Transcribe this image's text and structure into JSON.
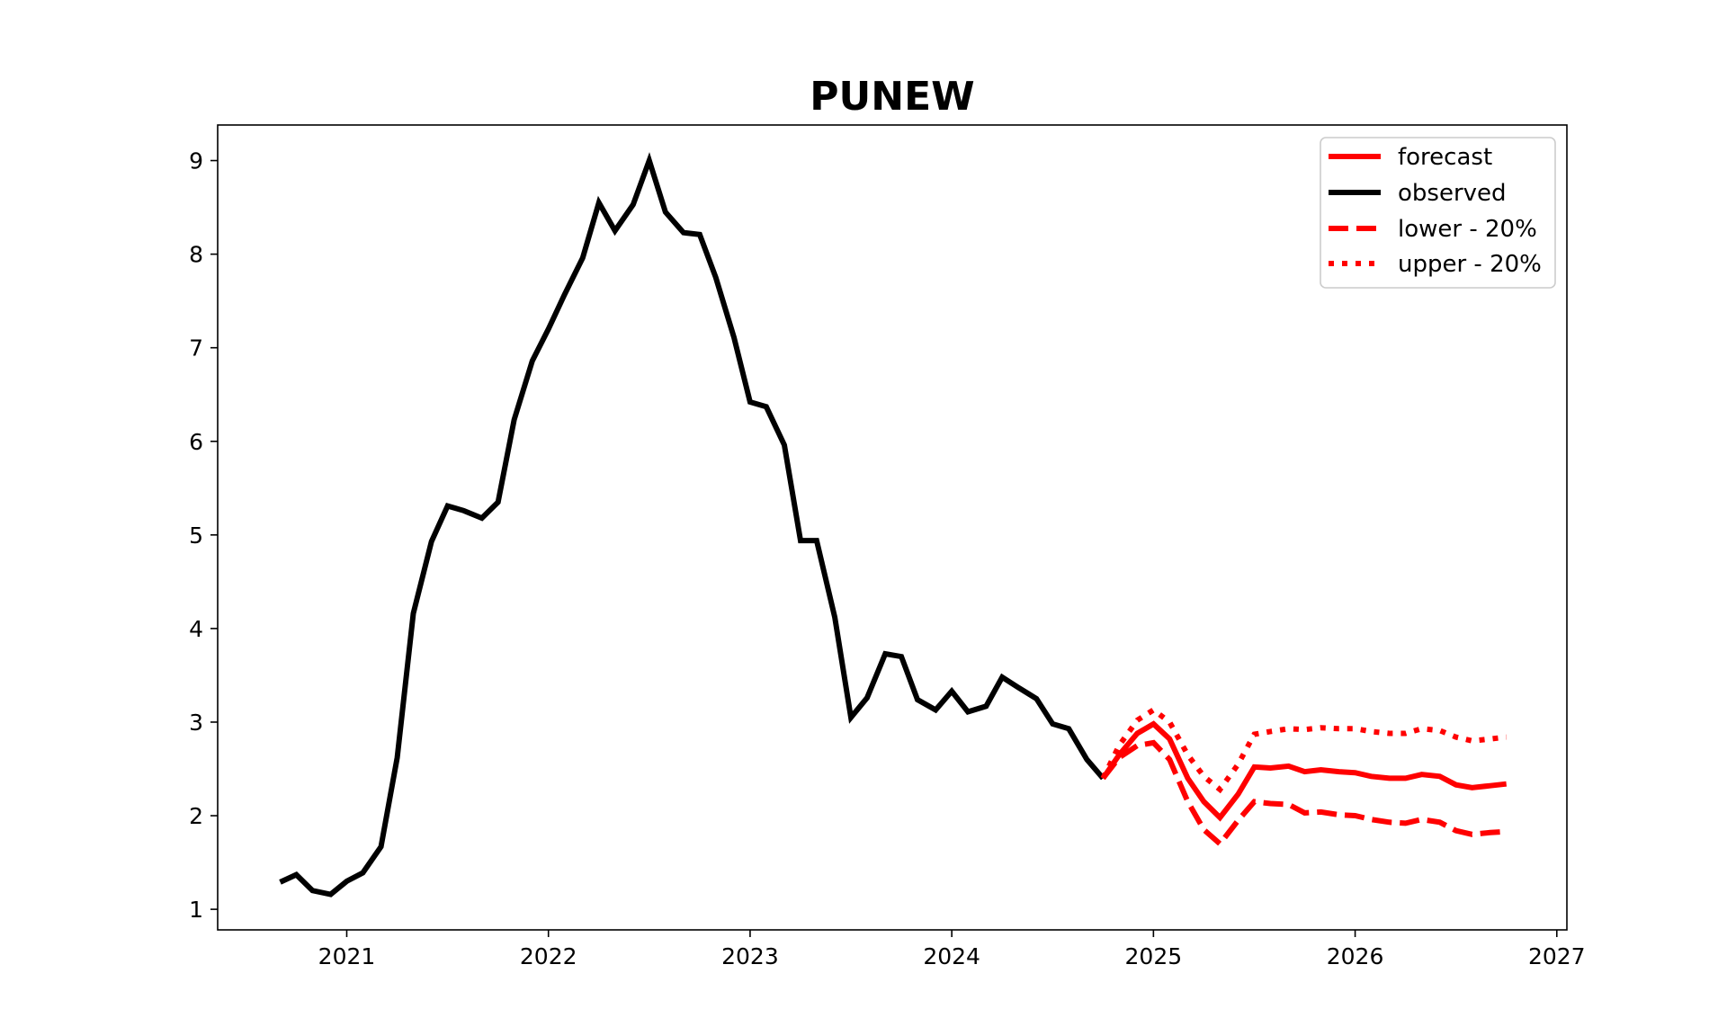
{
  "chart_data": {
    "type": "line",
    "title": "PUNEW",
    "xlabel": "",
    "ylabel": "",
    "xlim": [
      2020.36,
      2027.05
    ],
    "ylim": [
      0.78,
      9.38
    ],
    "xticks": [
      2021,
      2022,
      2023,
      2024,
      2025,
      2026,
      2027
    ],
    "xtick_labels": [
      "2021",
      "2022",
      "2023",
      "2024",
      "2025",
      "2026",
      "2027"
    ],
    "yticks": [
      1,
      2,
      3,
      4,
      5,
      6,
      7,
      8,
      9
    ],
    "ytick_labels": [
      "1",
      "2",
      "3",
      "4",
      "5",
      "6",
      "7",
      "8",
      "9"
    ],
    "grid": false,
    "legend_position": "top-right",
    "series": [
      {
        "name": "forecast",
        "color": "#ff0000",
        "style": "solid",
        "x": [
          2024.75,
          2024.83,
          2024.92,
          2025.0,
          2025.08,
          2025.17,
          2025.25,
          2025.33,
          2025.42,
          2025.5,
          2025.58,
          2025.67,
          2025.75,
          2025.83,
          2025.92,
          2026.0,
          2026.08,
          2026.17,
          2026.25,
          2026.33,
          2026.42,
          2026.5,
          2026.58,
          2026.67,
          2026.75
        ],
        "y": [
          2.4,
          2.65,
          2.88,
          2.98,
          2.82,
          2.4,
          2.15,
          1.98,
          2.23,
          2.52,
          2.51,
          2.53,
          2.47,
          2.49,
          2.47,
          2.46,
          2.42,
          2.4,
          2.4,
          2.44,
          2.42,
          2.33,
          2.3,
          2.32,
          2.34
        ]
      },
      {
        "name": "observed",
        "color": "#000000",
        "style": "solid",
        "x": [
          2020.67,
          2020.75,
          2020.83,
          2020.92,
          2021.0,
          2021.08,
          2021.17,
          2021.25,
          2021.33,
          2021.42,
          2021.5,
          2021.58,
          2021.67,
          2021.75,
          2021.83,
          2021.92,
          2022.0,
          2022.08,
          2022.17,
          2022.25,
          2022.33,
          2022.42,
          2022.5,
          2022.58,
          2022.67,
          2022.75,
          2022.83,
          2022.92,
          2023.0,
          2023.08,
          2023.17,
          2023.25,
          2023.33,
          2023.42,
          2023.5,
          2023.58,
          2023.67,
          2023.75,
          2023.83,
          2023.92,
          2024.0,
          2024.08,
          2024.17,
          2024.25,
          2024.33,
          2024.42,
          2024.5,
          2024.58,
          2024.67,
          2024.75
        ],
        "y": [
          1.29,
          1.37,
          1.2,
          1.16,
          1.3,
          1.39,
          1.67,
          2.62,
          4.16,
          4.93,
          5.31,
          5.26,
          5.18,
          5.35,
          6.23,
          6.86,
          7.2,
          7.57,
          7.96,
          8.55,
          8.25,
          8.53,
          9.0,
          8.45,
          8.23,
          8.21,
          7.75,
          7.11,
          6.42,
          6.37,
          5.96,
          4.94,
          4.94,
          4.12,
          3.05,
          3.26,
          3.73,
          3.7,
          3.24,
          3.13,
          3.33,
          3.11,
          3.17,
          3.48,
          3.37,
          3.25,
          2.98,
          2.93,
          2.6,
          2.4
        ]
      },
      {
        "name": "lower - 20%",
        "color": "#ff0000",
        "style": "dashed",
        "x": [
          2024.75,
          2024.83,
          2024.92,
          2025.0,
          2025.08,
          2025.17,
          2025.25,
          2025.33,
          2025.42,
          2025.5,
          2025.58,
          2025.67,
          2025.75,
          2025.83,
          2025.92,
          2026.0,
          2026.08,
          2026.17,
          2026.25,
          2026.33,
          2026.42,
          2026.5,
          2026.58,
          2026.67,
          2026.75
        ],
        "y": [
          2.4,
          2.62,
          2.75,
          2.78,
          2.6,
          2.15,
          1.85,
          1.7,
          1.95,
          2.15,
          2.13,
          2.12,
          2.03,
          2.04,
          2.01,
          2.0,
          1.96,
          1.93,
          1.92,
          1.96,
          1.93,
          1.84,
          1.8,
          1.82,
          1.83
        ]
      },
      {
        "name": "upper - 20%",
        "color": "#ff0000",
        "style": "dotted",
        "x": [
          2024.75,
          2024.83,
          2024.92,
          2025.0,
          2025.08,
          2025.17,
          2025.25,
          2025.33,
          2025.42,
          2025.5,
          2025.58,
          2025.67,
          2025.75,
          2025.83,
          2025.92,
          2026.0,
          2026.08,
          2026.17,
          2026.25,
          2026.33,
          2026.42,
          2026.5,
          2026.58,
          2026.67,
          2026.75
        ],
        "y": [
          2.4,
          2.75,
          3.02,
          3.13,
          3.0,
          2.65,
          2.42,
          2.28,
          2.55,
          2.87,
          2.9,
          2.93,
          2.92,
          2.94,
          2.93,
          2.93,
          2.9,
          2.88,
          2.88,
          2.93,
          2.91,
          2.84,
          2.8,
          2.82,
          2.84
        ]
      }
    ]
  }
}
